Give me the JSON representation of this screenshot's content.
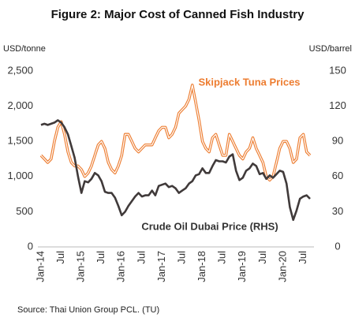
{
  "chart_data": {
    "type": "line",
    "title": "Figure 2: Major Cost of Canned Fish Industry",
    "y_label": "USD/tonne",
    "y2_label": "USD/barrel",
    "source": "Source: Thai Union Group PCL. (TU)",
    "annotations": [
      "Skipjack Tuna Prices",
      "Crude Oil Dubai Price (RHS)"
    ],
    "categories": [
      "Jan-14",
      null,
      null,
      null,
      null,
      null,
      "Jul",
      null,
      null,
      null,
      null,
      null,
      "Jan-15",
      null,
      null,
      null,
      null,
      null,
      "Jul",
      null,
      null,
      null,
      null,
      null,
      "Jan-16",
      null,
      null,
      null,
      null,
      null,
      "Jul",
      null,
      null,
      null,
      null,
      null,
      "Jan-17",
      null,
      null,
      null,
      null,
      null,
      "Jul",
      null,
      null,
      null,
      null,
      null,
      "Jan-18",
      null,
      null,
      null,
      null,
      null,
      "Jul",
      null,
      null,
      null,
      null,
      null,
      "Jan-19",
      null,
      null,
      null,
      null,
      null,
      "Jul",
      null,
      null,
      null,
      null,
      null,
      "Jan-20",
      null,
      null,
      null,
      null,
      null,
      "Jul",
      null,
      null
    ],
    "series": [
      {
        "name": "Skipjack Tuna Prices",
        "color": "#ed7d31",
        "axis": "y",
        "values": [
          1300,
          1250,
          1200,
          1250,
          1500,
          1700,
          1780,
          1600,
          1350,
          1200,
          1150,
          1150,
          1100,
          1000,
          1050,
          1150,
          1300,
          1450,
          1500,
          1400,
          1200,
          1100,
          1050,
          1150,
          1300,
          1600,
          1600,
          1500,
          1400,
          1350,
          1400,
          1450,
          1450,
          1450,
          1550,
          1650,
          1700,
          1700,
          1550,
          1600,
          1700,
          1900,
          1950,
          2000,
          2100,
          2300,
          2050,
          1800,
          1500,
          1400,
          1350,
          1550,
          1600,
          1450,
          1300,
          1300,
          1600,
          1500,
          1400,
          1300,
          1250,
          1350,
          1400,
          1550,
          1400,
          1300,
          1200,
          1000,
          950,
          1000,
          1200,
          1400,
          1500,
          1500,
          1400,
          1200,
          1250,
          1550,
          1600,
          1350,
          1300
        ]
      },
      {
        "name": "Crude Oil Dubai Price (RHS)",
        "color": "#403a3a",
        "axis": "y2",
        "values": [
          104,
          105,
          104,
          105,
          106,
          108,
          106,
          102,
          96,
          86,
          76,
          60,
          46,
          56,
          55,
          58,
          63,
          61,
          56,
          47,
          46,
          46,
          42,
          35,
          27,
          30,
          35,
          39,
          43,
          46,
          43,
          44,
          44,
          48,
          44,
          52,
          53,
          54,
          51,
          52,
          50,
          46,
          48,
          50,
          54,
          56,
          61,
          62,
          67,
          63,
          63,
          69,
          74,
          73,
          73,
          72,
          77,
          79,
          65,
          57,
          59,
          65,
          67,
          71,
          69,
          62,
          63,
          58,
          61,
          59,
          62,
          65,
          64,
          54,
          34,
          23,
          31,
          41,
          43,
          44,
          41
        ]
      }
    ],
    "ylim": [
      0,
      2500
    ],
    "yticks": [
      0,
      500,
      {
        "value": 1000,
        "label": "1,000"
      },
      {
        "value": 1500,
        "label": "1,500"
      },
      {
        "value": 2000,
        "label": "2,000"
      },
      {
        "value": 2500,
        "label": "2,500"
      }
    ],
    "y2lim": [
      0,
      150
    ],
    "y2ticks": [
      0,
      30,
      60,
      90,
      120,
      150
    ],
    "grid": false
  }
}
